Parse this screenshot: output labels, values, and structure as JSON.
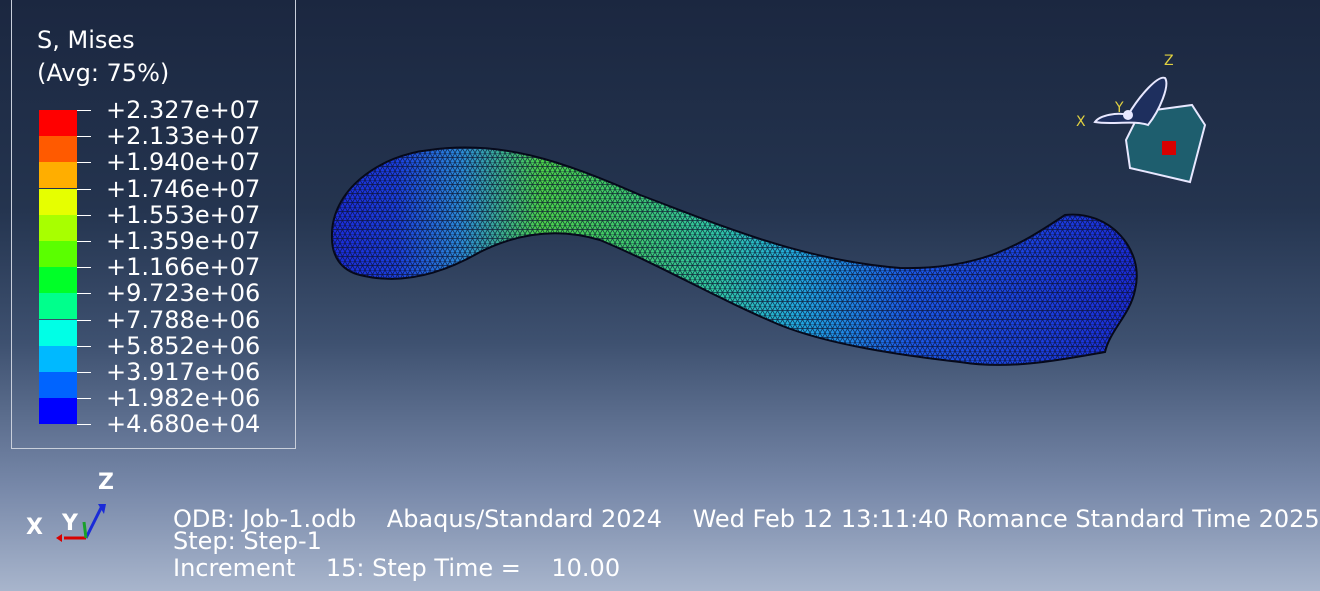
{
  "legend": {
    "title": "S, Mises",
    "subtitle": "(Avg: 75%)",
    "entries": [
      {
        "value": "+2.327e+07",
        "color": "#ff0000"
      },
      {
        "value": "+2.133e+07",
        "color": "#ff5a00"
      },
      {
        "value": "+1.940e+07",
        "color": "#ffae00"
      },
      {
        "value": "+1.746e+07",
        "color": "#e6ff00"
      },
      {
        "value": "+1.553e+07",
        "color": "#a8ff00"
      },
      {
        "value": "+1.359e+07",
        "color": "#5aff00"
      },
      {
        "value": "+1.166e+07",
        "color": "#00ff28"
      },
      {
        "value": "+9.723e+06",
        "color": "#00ff8c"
      },
      {
        "value": "+7.788e+06",
        "color": "#00ffe6"
      },
      {
        "value": "+5.852e+06",
        "color": "#00b9ff"
      },
      {
        "value": "+3.917e+06",
        "color": "#0064ff"
      },
      {
        "value": "+1.982e+06",
        "color": "#0000ff"
      },
      {
        "value": "+4.680e+04",
        "color": ""
      }
    ]
  },
  "triad": {
    "x_label": "X",
    "y_label": "Y",
    "z_label": "Z"
  },
  "orientation_triad": {
    "x_label": "X",
    "y_label": "Y",
    "z_label": "Z"
  },
  "info": {
    "odb_line": "ODB: Job-1.odb    Abaqus/Standard 2024    Wed Feb 12 13:11:40 Romance Standard Time 2025",
    "step_line": "Step: Step-1",
    "increment_line": "Increment    15: Step Time =    10.00"
  },
  "colors": {
    "model_blue": "#1a2bd8",
    "model_cyan": "#18b6d8",
    "model_green": "#4ad24a",
    "mesh_line": "#0a0f2a"
  }
}
